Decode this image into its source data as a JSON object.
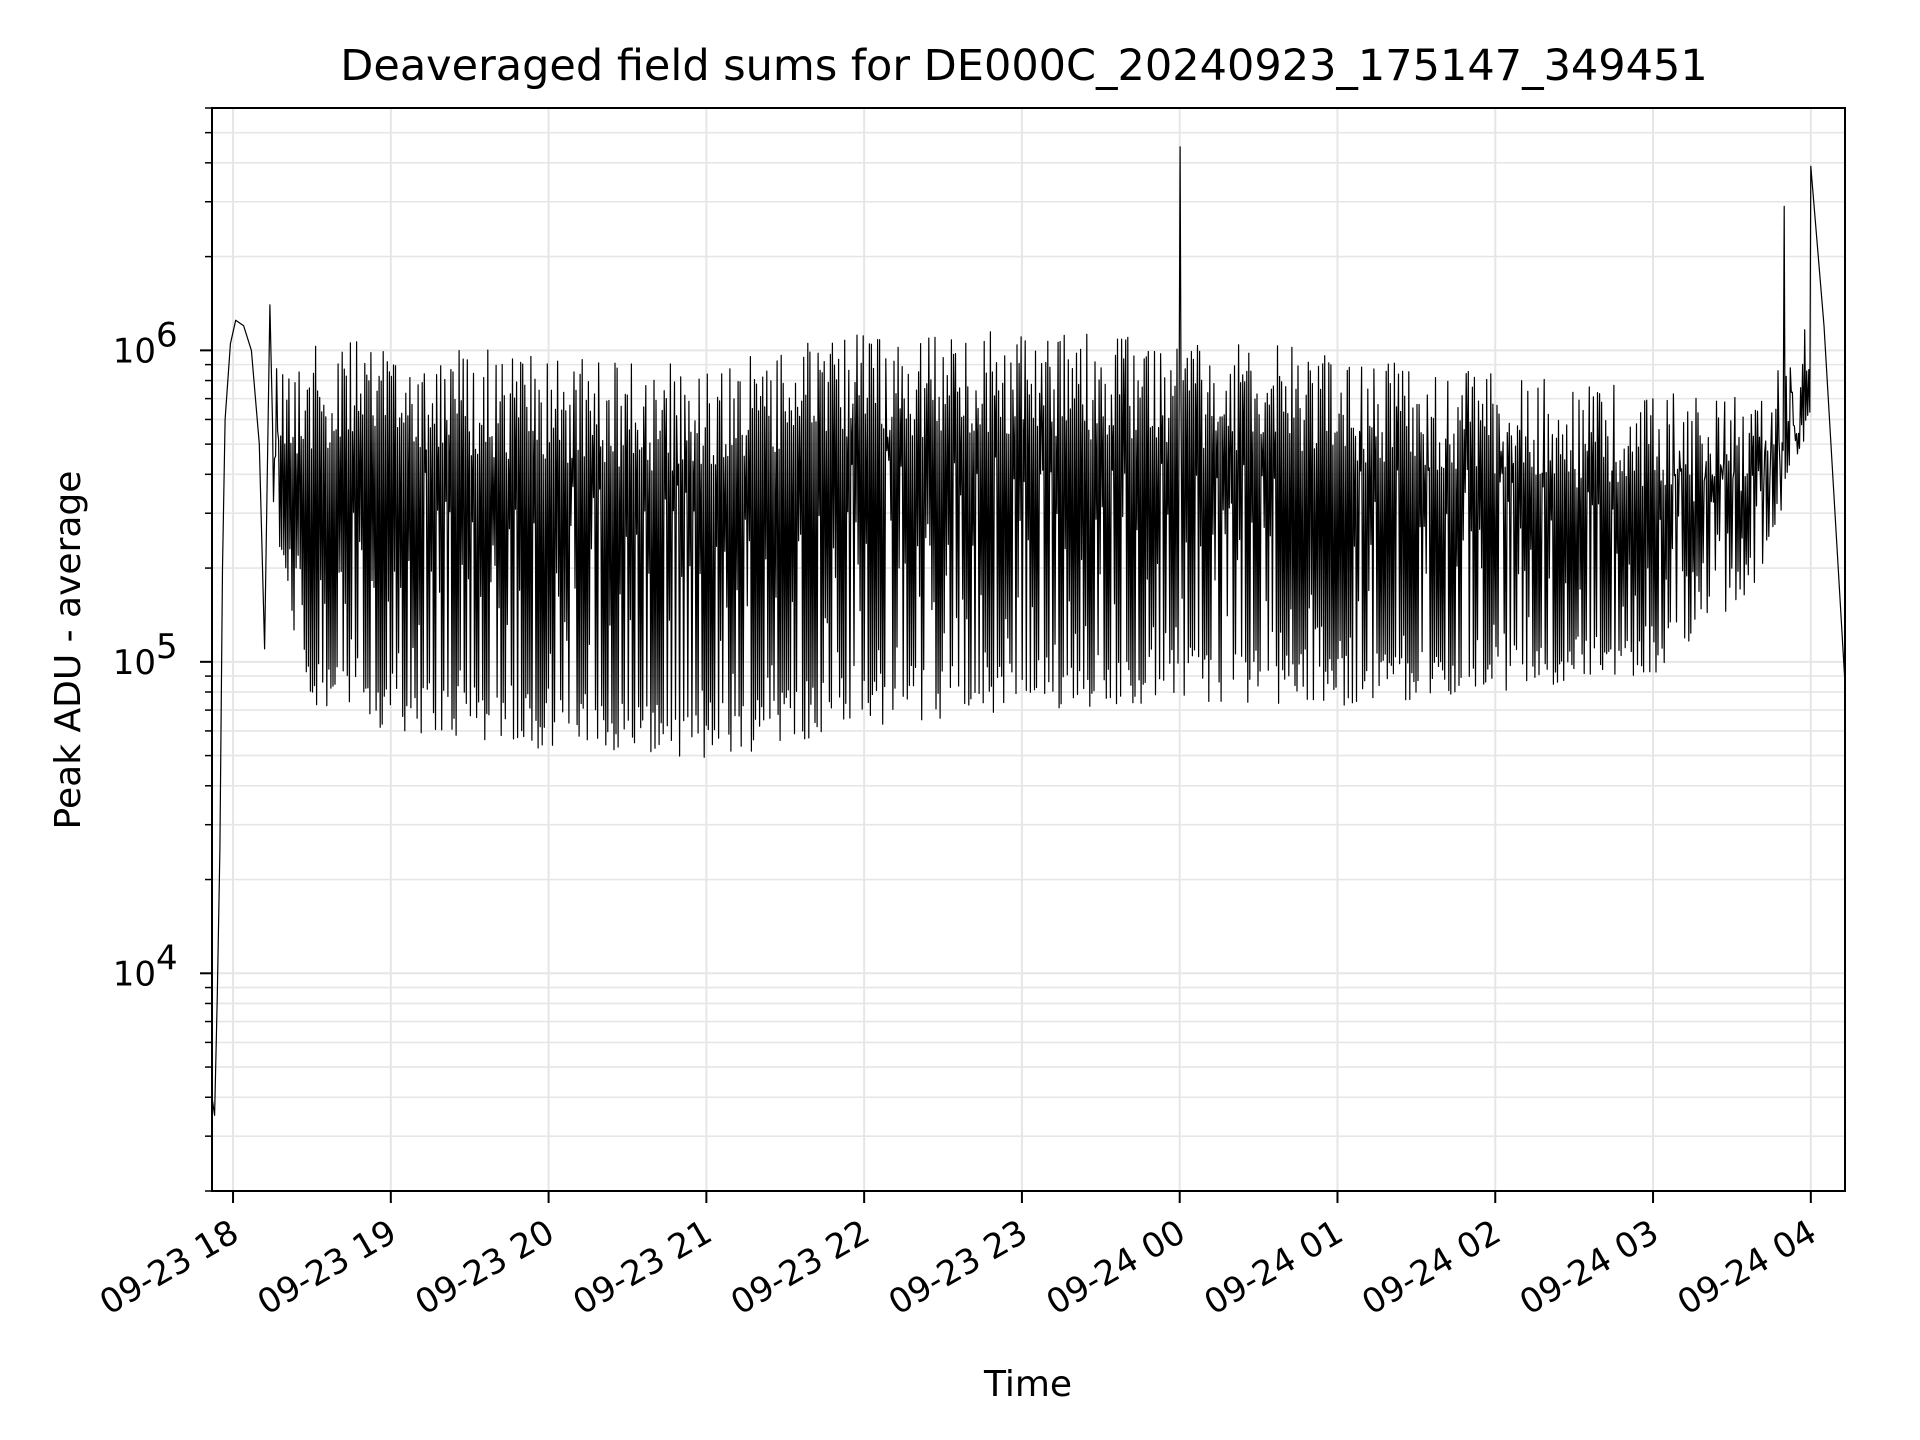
{
  "chart_data": {
    "type": "line",
    "title": "Deaveraged field sums for DE000C_20240923_175147_349451",
    "xlabel": "Time",
    "ylabel": "Peak ADU - average",
    "xlim": [
      "2024-09-23 17:52",
      "2024-09-24 04:13"
    ],
    "ylim": [
      2000,
      6000000
    ],
    "yscale": "log",
    "grid": true,
    "x_ticks": [
      "09-23 18",
      "09-23 19",
      "09-23 20",
      "09-23 21",
      "09-23 22",
      "09-23 23",
      "09-24 00",
      "09-24 01",
      "09-24 02",
      "09-24 03",
      "09-24 04"
    ],
    "x_tick_values": [
      "2024-09-23 18:00",
      "2024-09-23 19:00",
      "2024-09-23 20:00",
      "2024-09-23 21:00",
      "2024-09-23 22:00",
      "2024-09-23 23:00",
      "2024-09-24 00:00",
      "2024-09-24 01:00",
      "2024-09-24 02:00",
      "2024-09-24 03:00",
      "2024-09-24 04:00"
    ],
    "y_ticks": [
      10000,
      100000,
      1000000
    ],
    "y_tick_labels": [
      {
        "base": "10",
        "exp": "4"
      },
      {
        "base": "10",
        "exp": "5"
      },
      {
        "base": "10",
        "exp": "6"
      }
    ],
    "line_color": "#000000",
    "grid_color": "#e6e6e6",
    "series": [
      {
        "points": [
          [
            "2024-09-23 17:52",
            4000
          ],
          [
            "2024-09-23 17:53",
            3500
          ],
          [
            "2024-09-23 17:54",
            8500
          ],
          [
            "2024-09-23 17:55",
            25000
          ],
          [
            "2024-09-23 17:56",
            200000
          ],
          [
            "2024-09-23 17:57",
            600000
          ],
          [
            "2024-09-23 17:59",
            1050000
          ],
          [
            "2024-09-23 18:01",
            1250000
          ],
          [
            "2024-09-23 18:04",
            1200000
          ],
          [
            "2024-09-23 18:07",
            1000000
          ],
          [
            "2024-09-23 18:10",
            500000
          ],
          [
            "2024-09-23 18:12",
            110000
          ],
          [
            "2024-09-23 18:14",
            1400000
          ],
          [
            "2024-09-23 18:20",
            200000
          ],
          [
            "2024-09-23 18:30",
            80000
          ],
          [
            "2024-09-23 18:45",
            60000
          ],
          [
            "2024-09-23 18:50",
            40000
          ],
          [
            "2024-09-23 19:00",
            55000
          ],
          [
            "2024-09-23 19:30",
            50000
          ],
          [
            "2024-09-23 20:00",
            48000
          ],
          [
            "2024-09-23 20:30",
            42000
          ],
          [
            "2024-09-23 20:45",
            38000
          ],
          [
            "2024-09-23 21:00",
            45000
          ],
          [
            "2024-09-23 21:30",
            45000
          ],
          [
            "2024-09-23 22:00",
            60000
          ],
          [
            "2024-09-23 22:30",
            60000
          ],
          [
            "2024-09-23 23:00",
            60000
          ],
          [
            "2024-09-23 23:30",
            55000
          ],
          [
            "2024-09-24 00:00",
            4500000
          ],
          [
            "2024-09-24 00:10",
            70000
          ],
          [
            "2024-09-24 00:30",
            65000
          ],
          [
            "2024-09-24 01:00",
            60000
          ],
          [
            "2024-09-24 01:30",
            60000
          ],
          [
            "2024-09-24 02:00",
            65000
          ],
          [
            "2024-09-24 02:30",
            70000
          ],
          [
            "2024-09-24 03:00",
            60000
          ],
          [
            "2024-09-24 03:30",
            200000
          ],
          [
            "2024-09-24 03:50",
            2900000
          ],
          [
            "2024-09-24 04:00",
            3900000
          ],
          [
            "2024-09-24 04:05",
            1200000
          ],
          [
            "2024-09-24 04:13",
            85000
          ]
        ],
        "band_upper": [
          [
            "2024-09-23 18:15",
            1000000
          ],
          [
            "2024-09-23 19:00",
            1100000
          ],
          [
            "2024-09-23 20:00",
            950000
          ],
          [
            "2024-09-23 21:00",
            900000
          ],
          [
            "2024-09-23 22:00",
            1150000
          ],
          [
            "2024-09-23 23:00",
            1150000
          ],
          [
            "2024-09-24 00:00",
            1100000
          ],
          [
            "2024-09-24 01:00",
            1000000
          ],
          [
            "2024-09-24 02:00",
            850000
          ],
          [
            "2024-09-24 03:00",
            750000
          ],
          [
            "2024-09-24 03:40",
            700000
          ],
          [
            "2024-09-24 04:00",
            1300000
          ]
        ],
        "band_lower": [
          [
            "2024-09-23 18:15",
            250000
          ],
          [
            "2024-09-23 18:30",
            65000
          ],
          [
            "2024-09-23 19:00",
            60000
          ],
          [
            "2024-09-23 20:00",
            52000
          ],
          [
            "2024-09-23 21:00",
            48000
          ],
          [
            "2024-09-23 22:00",
            62000
          ],
          [
            "2024-09-23 23:00",
            68000
          ],
          [
            "2024-09-24 00:00",
            75000
          ],
          [
            "2024-09-24 01:00",
            72000
          ],
          [
            "2024-09-24 02:00",
            80000
          ],
          [
            "2024-09-24 03:00",
            90000
          ],
          [
            "2024-09-24 03:40",
            180000
          ],
          [
            "2024-09-24 04:00",
            600000
          ]
        ],
        "band_sample_count": 1500
      }
    ]
  }
}
